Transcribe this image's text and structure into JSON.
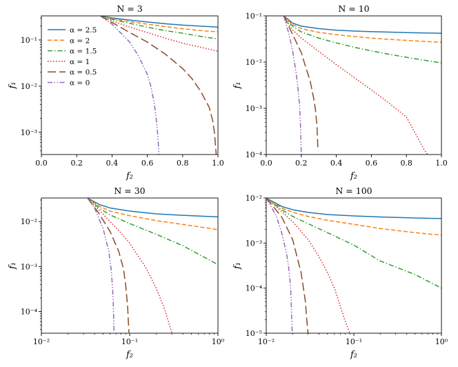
{
  "figure": {
    "legend_placement": "top-left of first panel",
    "legend_entries": [
      "α = 2.5",
      "α = 2",
      "α = 1.5",
      "α = 1",
      "α = 0.5",
      "α = 0"
    ],
    "series_colors": [
      "#1f77b4",
      "#ff7f0e",
      "#2ca02c",
      "#d62728",
      "#8c4a22",
      "#9467bd"
    ],
    "series_styles": [
      "solid",
      "dashed",
      "dashdot",
      "dotted",
      "longdash",
      "dashdotdot"
    ]
  },
  "chart_data": [
    {
      "type": "line",
      "title": "N = 3",
      "xlabel": "f₂",
      "ylabel": "f₁",
      "xscale": "linear",
      "yscale": "log",
      "xlim": [
        0,
        1
      ],
      "ylim": [
        0.00033,
        0.333
      ],
      "xticks": [
        "0.0",
        "0.2",
        "0.4",
        "0.6",
        "0.8",
        "1.0"
      ],
      "yticks": [
        "10⁻³",
        "10⁻²",
        "10⁻¹"
      ],
      "series": [
        {
          "name": "α = 2.5",
          "x": [
            0.333,
            0.4,
            0.5,
            0.6,
            0.7,
            0.8,
            0.9,
            1.0
          ],
          "y": [
            0.333,
            0.3,
            0.27,
            0.245,
            0.225,
            0.21,
            0.2,
            0.19
          ]
        },
        {
          "name": "α = 2",
          "x": [
            0.333,
            0.4,
            0.5,
            0.6,
            0.7,
            0.8,
            0.9,
            1.0
          ],
          "y": [
            0.333,
            0.29,
            0.25,
            0.22,
            0.195,
            0.175,
            0.16,
            0.15
          ]
        },
        {
          "name": "α = 1.5",
          "x": [
            0.333,
            0.4,
            0.5,
            0.6,
            0.7,
            0.8,
            0.9,
            1.0
          ],
          "y": [
            0.333,
            0.28,
            0.23,
            0.19,
            0.16,
            0.14,
            0.12,
            0.105
          ]
        },
        {
          "name": "α = 1",
          "x": [
            0.333,
            0.4,
            0.5,
            0.6,
            0.7,
            0.8,
            0.9,
            1.0
          ],
          "y": [
            0.333,
            0.26,
            0.19,
            0.145,
            0.11,
            0.085,
            0.07,
            0.057
          ]
        },
        {
          "name": "α = 0.5",
          "x": [
            0.333,
            0.4,
            0.5,
            0.6,
            0.7,
            0.8,
            0.85,
            0.9,
            0.95,
            0.97,
            0.98,
            0.99
          ],
          "y": [
            0.333,
            0.24,
            0.145,
            0.09,
            0.05,
            0.024,
            0.015,
            0.008,
            0.0035,
            0.0018,
            0.001,
            0.00033
          ]
        },
        {
          "name": "α = 0",
          "x": [
            0.333,
            0.4,
            0.5,
            0.55,
            0.6,
            0.62,
            0.64,
            0.65,
            0.66,
            0.663,
            0.665
          ],
          "y": [
            0.333,
            0.22,
            0.09,
            0.045,
            0.018,
            0.01,
            0.004,
            0.002,
            0.0008,
            0.0005,
            0.00033
          ]
        }
      ]
    },
    {
      "type": "line",
      "title": "N = 10",
      "xlabel": "f₂",
      "ylabel": "f₁",
      "xscale": "linear",
      "yscale": "log",
      "xlim": [
        0,
        1
      ],
      "ylim": [
        0.0001,
        0.1
      ],
      "xticks": [
        "0.0",
        "0.2",
        "0.4",
        "0.6",
        "0.8",
        "1.0"
      ],
      "yticks": [
        "10⁻⁴",
        "10⁻³",
        "10⁻²",
        "10⁻¹"
      ],
      "series": [
        {
          "name": "α = 2.5",
          "x": [
            0.1,
            0.15,
            0.2,
            0.3,
            0.4,
            0.5,
            0.6,
            0.7,
            0.8,
            0.9,
            1.0
          ],
          "y": [
            0.1,
            0.07,
            0.06,
            0.053,
            0.049,
            0.047,
            0.0455,
            0.0445,
            0.0435,
            0.0428,
            0.042
          ]
        },
        {
          "name": "α = 2",
          "x": [
            0.1,
            0.15,
            0.2,
            0.3,
            0.4,
            0.5,
            0.6,
            0.7,
            0.8,
            0.9,
            1.0
          ],
          "y": [
            0.1,
            0.065,
            0.053,
            0.044,
            0.039,
            0.036,
            0.033,
            0.031,
            0.0295,
            0.028,
            0.0268
          ]
        },
        {
          "name": "α = 1.5",
          "x": [
            0.1,
            0.15,
            0.2,
            0.3,
            0.4,
            0.5,
            0.6,
            0.7,
            0.8,
            0.9,
            1.0
          ],
          "y": [
            0.1,
            0.06,
            0.045,
            0.033,
            0.026,
            0.021,
            0.0175,
            0.0148,
            0.0127,
            0.011,
            0.0096
          ]
        },
        {
          "name": "α = 1",
          "x": [
            0.1,
            0.15,
            0.2,
            0.3,
            0.4,
            0.5,
            0.6,
            0.7,
            0.8,
            0.9,
            0.92
          ],
          "y": [
            0.1,
            0.05,
            0.033,
            0.017,
            0.0088,
            0.0047,
            0.0025,
            0.0013,
            0.00065,
            0.00013,
            0.0001
          ]
        },
        {
          "name": "α = 0.5",
          "x": [
            0.1,
            0.15,
            0.2,
            0.22,
            0.25,
            0.27,
            0.28,
            0.29,
            0.295
          ],
          "y": [
            0.1,
            0.04,
            0.016,
            0.009,
            0.004,
            0.0017,
            0.001,
            0.0004,
            0.00012
          ]
        },
        {
          "name": "α = 0",
          "x": [
            0.1,
            0.13,
            0.15,
            0.17,
            0.18,
            0.19,
            0.195,
            0.2
          ],
          "y": [
            0.1,
            0.04,
            0.018,
            0.006,
            0.003,
            0.0012,
            0.0005,
            0.0001
          ]
        }
      ]
    },
    {
      "type": "line",
      "title": "N = 30",
      "xlabel": "f₂",
      "ylabel": "f₁",
      "xscale": "log",
      "yscale": "log",
      "xlim": [
        0.01,
        1
      ],
      "ylim": [
        3.3e-05,
        0.0333
      ],
      "xticks": [
        "10⁻²",
        "10⁻¹",
        "10⁰"
      ],
      "yticks": [
        "10⁻⁴",
        "10⁻³",
        "10⁻²"
      ],
      "series": [
        {
          "name": "α = 2.5",
          "x": [
            0.0333,
            0.045,
            0.06,
            0.1,
            0.2,
            0.4,
            1.0
          ],
          "y": [
            0.0333,
            0.024,
            0.02,
            0.017,
            0.0148,
            0.0137,
            0.0127
          ]
        },
        {
          "name": "α = 2",
          "x": [
            0.0333,
            0.045,
            0.06,
            0.1,
            0.2,
            0.4,
            1.0
          ],
          "y": [
            0.0333,
            0.022,
            0.017,
            0.0135,
            0.0105,
            0.0086,
            0.0066
          ]
        },
        {
          "name": "α = 1.5",
          "x": [
            0.0333,
            0.045,
            0.06,
            0.1,
            0.2,
            0.4,
            1.0
          ],
          "y": [
            0.0333,
            0.02,
            0.014,
            0.009,
            0.0052,
            0.0029,
            0.0011
          ]
        },
        {
          "name": "α = 1",
          "x": [
            0.0333,
            0.045,
            0.06,
            0.08,
            0.1,
            0.15,
            0.2,
            0.25,
            0.3
          ],
          "y": [
            0.0333,
            0.018,
            0.01,
            0.0055,
            0.0033,
            0.001,
            0.00033,
            0.00011,
            3.4e-05
          ]
        },
        {
          "name": "α = 0.5",
          "x": [
            0.0333,
            0.045,
            0.06,
            0.075,
            0.085,
            0.09,
            0.095,
            0.098
          ],
          "y": [
            0.0333,
            0.015,
            0.006,
            0.0022,
            0.0009,
            0.0004,
            0.00012,
            3.4e-05
          ]
        },
        {
          "name": "α = 0",
          "x": [
            0.0333,
            0.04,
            0.05,
            0.058,
            0.062,
            0.065,
            0.0665
          ],
          "y": [
            0.0333,
            0.02,
            0.007,
            0.0022,
            0.0008,
            0.0002,
            3.4e-05
          ]
        }
      ]
    },
    {
      "type": "line",
      "title": "N = 100",
      "xlabel": "f₂",
      "ylabel": "f₁",
      "xscale": "log",
      "yscale": "log",
      "xlim": [
        0.01,
        1
      ],
      "ylim": [
        1e-05,
        0.01
      ],
      "xticks": [
        "10⁻²",
        "10⁻¹",
        "10⁰"
      ],
      "yticks": [
        "10⁻⁵",
        "10⁻⁴",
        "10⁻³",
        "10⁻²"
      ],
      "series": [
        {
          "name": "α = 2.5",
          "x": [
            0.01,
            0.015,
            0.02,
            0.03,
            0.05,
            0.1,
            0.2,
            0.5,
            1.0
          ],
          "y": [
            0.01,
            0.0065,
            0.0055,
            0.0048,
            0.0043,
            0.004,
            0.0038,
            0.0036,
            0.0035
          ]
        },
        {
          "name": "α = 2",
          "x": [
            0.01,
            0.015,
            0.02,
            0.03,
            0.05,
            0.1,
            0.2,
            0.5,
            1.0
          ],
          "y": [
            0.01,
            0.006,
            0.0048,
            0.0039,
            0.0032,
            0.0026,
            0.0021,
            0.0017,
            0.0015
          ]
        },
        {
          "name": "α = 1.5",
          "x": [
            0.01,
            0.015,
            0.02,
            0.03,
            0.05,
            0.1,
            0.2,
            0.5,
            1.0
          ],
          "y": [
            0.01,
            0.0055,
            0.0039,
            0.0027,
            0.0017,
            0.0009,
            0.0004,
            0.0002,
            0.0001
          ]
        },
        {
          "name": "α = 1",
          "x": [
            0.01,
            0.015,
            0.02,
            0.03,
            0.04,
            0.05,
            0.06,
            0.07,
            0.08,
            0.09
          ],
          "y": [
            0.01,
            0.005,
            0.003,
            0.0012,
            0.0005,
            0.00022,
            0.0001,
            4e-05,
            1.8e-05,
            1e-05
          ]
        },
        {
          "name": "α = 0.5",
          "x": [
            0.01,
            0.015,
            0.02,
            0.025,
            0.028,
            0.029,
            0.03
          ],
          "y": [
            0.01,
            0.0038,
            0.0012,
            0.00022,
            5e-05,
            2e-05,
            1e-05
          ]
        },
        {
          "name": "α = 0",
          "x": [
            0.01,
            0.013,
            0.015,
            0.017,
            0.018,
            0.019,
            0.0198
          ],
          "y": [
            0.01,
            0.004,
            0.0017,
            0.0006,
            0.0003,
            0.0001,
            1e-05
          ]
        }
      ]
    }
  ]
}
